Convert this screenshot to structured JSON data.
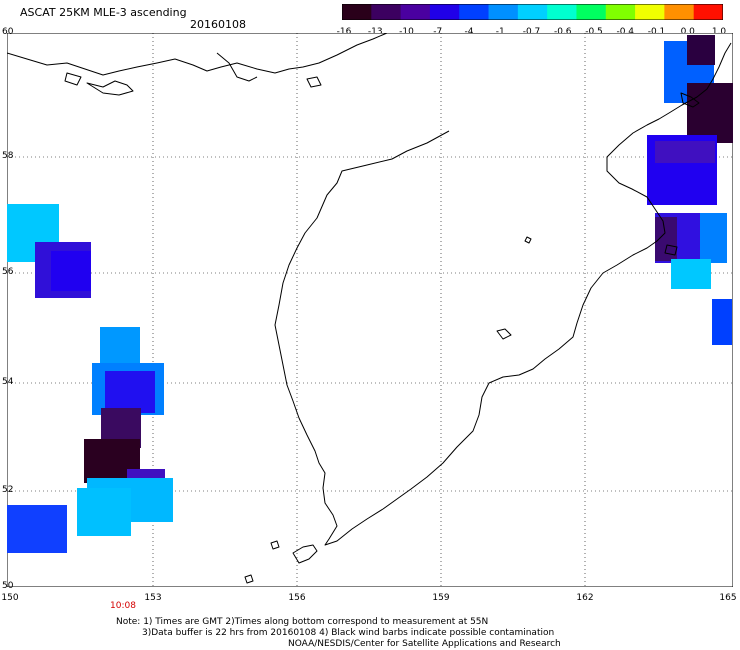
{
  "title": "ASCAT 25KM MLE-3 ascending",
  "date": "20160108",
  "colorbar": {
    "labels": [
      "-16",
      "-13",
      "-10",
      "-7",
      "-4",
      "-1",
      "-0.7",
      "-0.6",
      "-0.5",
      "-0.4",
      "-0.1",
      "0.0",
      "1.0"
    ],
    "colors": [
      "#2a001a",
      "#3c0060",
      "#4a00a0",
      "#2000e8",
      "#0040ff",
      "#0090ff",
      "#00d0ff",
      "#00ffd0",
      "#00ff60",
      "#80ff00",
      "#f0ff00",
      "#ff9000",
      "#ff1000"
    ]
  },
  "axes": {
    "lat_ticks": [
      "60",
      "58",
      "56",
      "54",
      "52",
      "50"
    ],
    "lon_ticks": [
      "150",
      "153",
      "156",
      "159",
      "162",
      "165"
    ]
  },
  "pass_time": "10:08",
  "notes": [
    "Note: 1) Times are GMT 2)Times along bottom correspond to measurement at 55N",
    "3)Data buffer is 22 hrs from 20160108 4) Black wind barbs indicate possible contamination",
    "NOAA/NESDIS/Center for Satellite Applications and Research"
  ]
}
